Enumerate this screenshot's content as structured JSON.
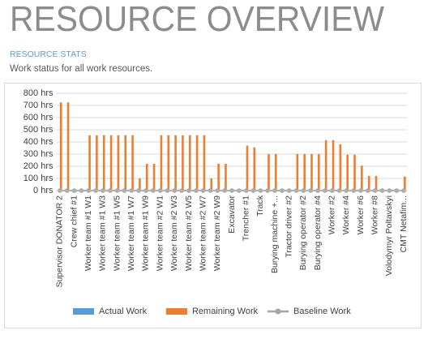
{
  "page": {
    "title": "RESOURCE OVERVIEW",
    "section": "RESOURCE STATS",
    "subtitle": "Work status for all work resources."
  },
  "chart_data": {
    "type": "bar",
    "categories": [
      "Supervisor DONATOR 2",
      null,
      "Crew chief #1",
      null,
      "Worker team #1 W1",
      null,
      "Worker team #1 W3",
      null,
      "Worker team #1 W5",
      null,
      "Worker team #1 W7",
      null,
      "Worker team #1 W9",
      null,
      "Worker team #2 W1",
      null,
      "Worker team #2 W3",
      null,
      "Worker team #2 W5",
      null,
      "Worker team #2 W7",
      null,
      "Worker team #2 W9",
      null,
      "Excavator",
      null,
      "Trencher #1",
      null,
      "Track",
      null,
      "Burying machine +...",
      null,
      "Tractor driver #2",
      null,
      "Burying operator #2",
      null,
      "Burying operator #4",
      null,
      "Worker #2",
      null,
      "Worker #4",
      null,
      "Worker #6",
      null,
      "Worker #8",
      null,
      "Volodymyr Poltavskyi",
      null,
      "CMT Netafim..."
    ],
    "series": [
      {
        "name": "Actual Work",
        "color": "#5b9bd5",
        "values": [
          0,
          0,
          0,
          0,
          0,
          0,
          0,
          0,
          0,
          0,
          0,
          0,
          0,
          0,
          0,
          0,
          0,
          0,
          0,
          0,
          0,
          0,
          0,
          0,
          0,
          0,
          0,
          0,
          0,
          0,
          0,
          0,
          0,
          0,
          0,
          0,
          0,
          0,
          0,
          0,
          0,
          0,
          0,
          0,
          0,
          0,
          0,
          0,
          0
        ]
      },
      {
        "name": "Remaining Work",
        "color": "#ed7d31",
        "values": [
          725,
          725,
          0,
          0,
          455,
          455,
          455,
          455,
          455,
          455,
          455,
          100,
          220,
          220,
          455,
          455,
          455,
          455,
          455,
          455,
          455,
          100,
          220,
          220,
          0,
          0,
          370,
          355,
          0,
          300,
          300,
          0,
          0,
          300,
          300,
          300,
          300,
          415,
          415,
          380,
          295,
          295,
          205,
          120,
          120,
          0,
          0,
          0,
          115
        ]
      },
      {
        "name": "Baseline Work",
        "color": "#a5a5a5",
        "type": "line",
        "values": [
          0,
          0,
          0,
          0,
          0,
          0,
          0,
          0,
          0,
          0,
          0,
          0,
          0,
          0,
          0,
          0,
          0,
          0,
          0,
          0,
          0,
          0,
          0,
          0,
          0,
          0,
          0,
          0,
          0,
          0,
          0,
          0,
          0,
          0,
          0,
          0,
          0,
          0,
          0,
          0,
          0,
          0,
          0,
          0,
          0,
          0,
          0,
          0,
          0
        ]
      }
    ],
    "ylim": [
      0,
      800
    ],
    "yticks": [
      {
        "value": 0,
        "label": "0 hrs"
      },
      {
        "value": 100,
        "label": "100 hrs"
      },
      {
        "value": 200,
        "label": "200 hrs"
      },
      {
        "value": 300,
        "label": "300 hrs"
      },
      {
        "value": 400,
        "label": "400 hrs"
      },
      {
        "value": 500,
        "label": "500 hrs"
      },
      {
        "value": 600,
        "label": "600 hrs"
      },
      {
        "value": 700,
        "label": "700 hrs"
      },
      {
        "value": 800,
        "label": "800 hrs"
      }
    ],
    "grid": true,
    "legend": "bottom"
  }
}
